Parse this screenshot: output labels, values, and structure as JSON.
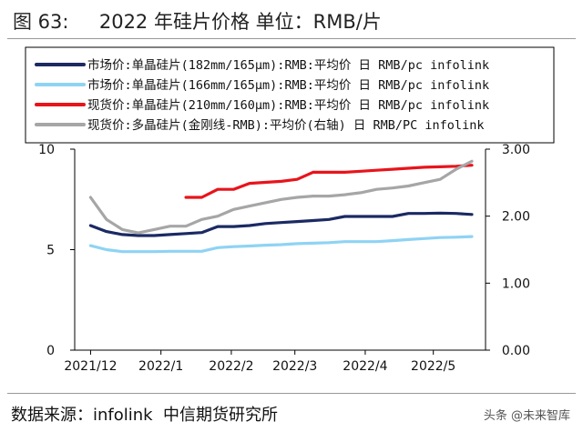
{
  "title": "图 63:     2022 年硅片价格 单位：RMB/片",
  "source": "数据来源：infolink  中信期货研究所",
  "watermark": "头条 @未来智库",
  "chart_data": {
    "type": "line",
    "x": [
      "2021/12/01",
      "2021/12/08",
      "2021/12/15",
      "2021/12/22",
      "2021/12/29",
      "2022/01/05",
      "2022/01/12",
      "2022/01/19",
      "2022/01/26",
      "2022/02/02",
      "2022/02/09",
      "2022/02/16",
      "2022/02/23",
      "2022/03/02",
      "2022/03/09",
      "2022/03/16",
      "2022/03/23",
      "2022/03/30",
      "2022/04/06",
      "2022/04/13",
      "2022/04/20",
      "2022/04/27",
      "2022/05/04",
      "2022/05/11",
      "2022/05/18"
    ],
    "xticks": [
      "2021/12",
      "2022/1",
      "2022/2",
      "2022/3",
      "2022/4",
      "2022/5"
    ],
    "y_left": {
      "ticks": [
        "0",
        "5",
        "10"
      ],
      "range": [
        0,
        10
      ]
    },
    "y_right": {
      "ticks": [
        "0.00",
        "1.00",
        "2.00",
        "3.00"
      ],
      "range": [
        0,
        3
      ]
    },
    "grid": false,
    "legend_position": "top",
    "series": [
      {
        "name": "市场价:单晶硅片(182mm/165μm):RMB:平均价 日 RMB/pc infolink",
        "axis": "left",
        "color": "#1b2a63",
        "values": [
          6.2,
          5.9,
          5.75,
          5.7,
          5.7,
          5.75,
          5.8,
          5.85,
          6.15,
          6.15,
          6.2,
          6.3,
          6.35,
          6.4,
          6.45,
          6.5,
          6.65,
          6.65,
          6.65,
          6.65,
          6.8,
          6.8,
          6.82,
          6.8,
          6.75
        ]
      },
      {
        "name": "市场价:单晶硅片(166mm/165μm):RMB:平均价 日 RMB/pc infolink",
        "axis": "left",
        "color": "#8fd3f4",
        "values": [
          5.2,
          5.0,
          4.9,
          4.9,
          4.9,
          4.92,
          4.92,
          4.92,
          5.1,
          5.15,
          5.18,
          5.22,
          5.25,
          5.3,
          5.32,
          5.35,
          5.4,
          5.4,
          5.4,
          5.45,
          5.5,
          5.55,
          5.6,
          5.62,
          5.65
        ]
      },
      {
        "name": "现货价:单晶硅片(210mm/160μm):RMB:平均价 日 RMB/pc infolink",
        "axis": "left",
        "color": "#e8141b",
        "values": [
          null,
          null,
          null,
          null,
          null,
          null,
          7.6,
          7.6,
          8.0,
          8.0,
          8.3,
          8.35,
          8.4,
          8.5,
          8.85,
          8.85,
          8.85,
          8.9,
          8.95,
          9.0,
          9.05,
          9.1,
          9.12,
          9.15,
          9.2
        ]
      },
      {
        "name": "现货价:多晶硅片(金刚线-RMB):平均价(右轴) 日 RMB/PC infolink",
        "axis": "right",
        "color": "#a6a6a6",
        "values": [
          2.28,
          1.95,
          1.8,
          1.75,
          1.8,
          1.85,
          1.85,
          1.95,
          2.0,
          2.1,
          2.15,
          2.2,
          2.25,
          2.28,
          2.3,
          2.3,
          2.32,
          2.35,
          2.4,
          2.42,
          2.45,
          2.5,
          2.55,
          2.7,
          2.82
        ]
      }
    ]
  }
}
